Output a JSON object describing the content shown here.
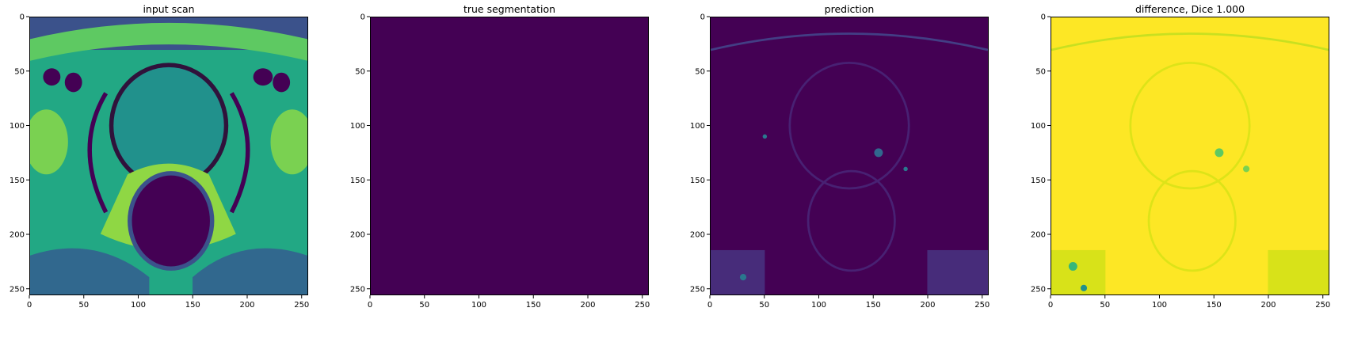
{
  "figure": {
    "panels": [
      {
        "id": "input-scan",
        "title": "input scan",
        "imagery": "mri-scan"
      },
      {
        "id": "true-segmentation",
        "title": "true segmentation",
        "imagery": "flat-purple"
      },
      {
        "id": "prediction",
        "title": "prediction",
        "imagery": "dark-prediction"
      },
      {
        "id": "difference",
        "title": "difference, Dice 1.000",
        "imagery": "yellow-difference"
      }
    ],
    "axis": {
      "ticks": [
        "0",
        "50",
        "100",
        "150",
        "200",
        "250"
      ],
      "tick_values": [
        0,
        50,
        100,
        150,
        200,
        250
      ],
      "range": [
        0,
        256
      ]
    },
    "colormap": "viridis",
    "colors": {
      "viridis_dark": "#440154",
      "viridis_mid": "#21918c",
      "viridis_bright": "#fde725"
    }
  }
}
